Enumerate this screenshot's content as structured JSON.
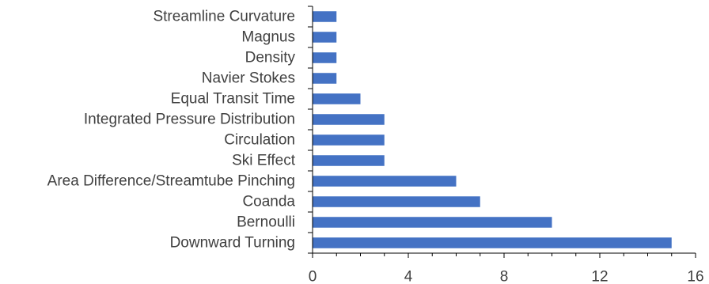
{
  "chart_data": {
    "type": "bar",
    "orientation": "horizontal",
    "categories": [
      "Streamline Curvature",
      "Magnus",
      "Density",
      "Navier Stokes",
      "Equal Transit Time",
      "Integrated Pressure Distribution",
      "Circulation",
      "Ski Effect",
      "Area Difference/Streamtube Pinching",
      "Coanda",
      "Bernoulli",
      "Downward Turning"
    ],
    "values": [
      1,
      1,
      1,
      1,
      2,
      3,
      3,
      3,
      6,
      7,
      10,
      15
    ],
    "xlim": [
      0,
      16
    ],
    "xticks": [
      "0",
      "4",
      "8",
      "12",
      "16"
    ],
    "title": "",
    "xlabel": "",
    "ylabel": "",
    "grid": false,
    "bar_color": "#4472C4",
    "axis_color": "#000000",
    "text_color": "#404040"
  }
}
